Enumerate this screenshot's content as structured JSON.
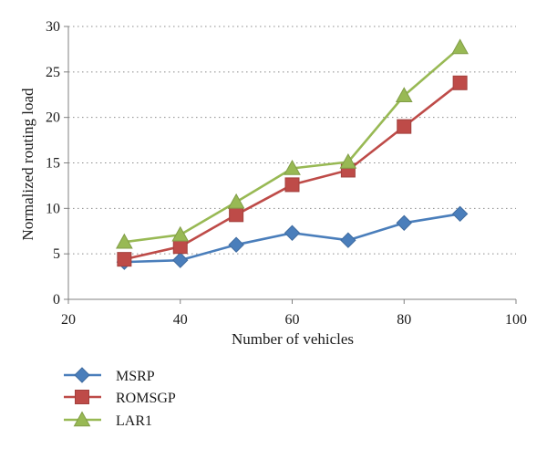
{
  "chart_data": {
    "type": "line",
    "xlabel": "Number of vehicles",
    "ylabel": "Normalized routing load",
    "xlim": [
      20,
      100
    ],
    "ylim": [
      0,
      30
    ],
    "xticks": [
      "20",
      "40",
      "60",
      "80",
      "100"
    ],
    "yticks": [
      "0",
      "5",
      "10",
      "15",
      "20",
      "25",
      "30"
    ],
    "grid": "horizontal dotted",
    "legend_position": "bottom-left, below plot",
    "x": [
      30,
      40,
      50,
      60,
      70,
      80,
      90
    ],
    "series": [
      {
        "name": "MSRP",
        "marker": "diamond",
        "color": "#4a7ebb",
        "values": [
          4.1,
          4.3,
          6.0,
          7.3,
          6.5,
          8.4,
          9.4
        ]
      },
      {
        "name": "ROMSGP",
        "marker": "square",
        "color": "#be4b48",
        "values": [
          4.4,
          5.8,
          9.3,
          12.6,
          14.2,
          19.0,
          23.8
        ]
      },
      {
        "name": "LAR1",
        "marker": "triangle",
        "color": "#98b954",
        "values": [
          6.3,
          7.1,
          10.7,
          14.4,
          15.1,
          22.4,
          27.7
        ]
      }
    ]
  }
}
